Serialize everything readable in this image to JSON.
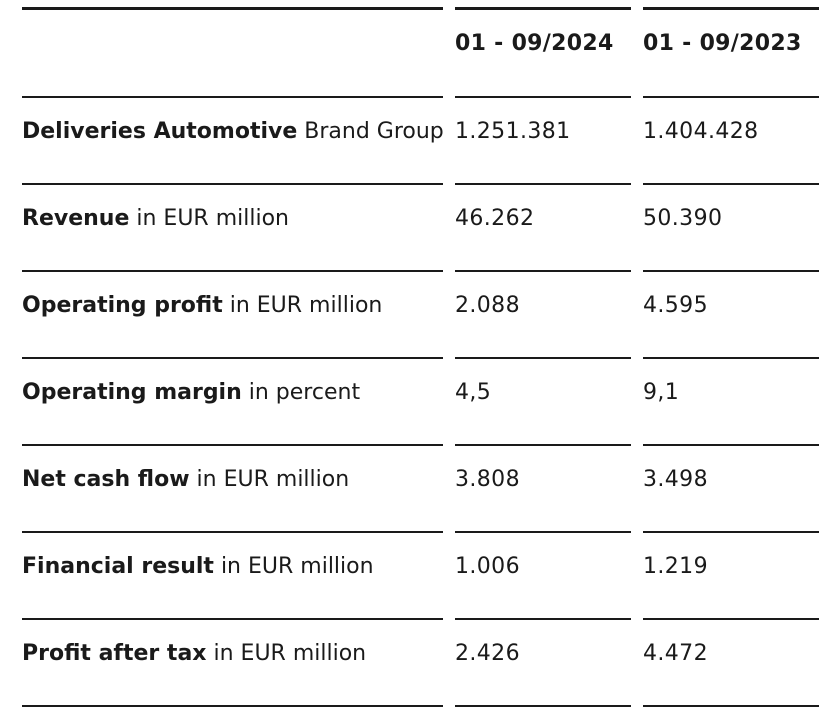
{
  "table": {
    "headers": [
      "",
      "01 - 09/2024",
      "01 - 09/2023"
    ],
    "rows": [
      {
        "label_strong": "Deliveries Automotive",
        "label_rest": " Brand Group",
        "values": [
          "1.251.381",
          "1.404.428"
        ]
      },
      {
        "label_strong": "Revenue",
        "label_rest": " in EUR million",
        "values": [
          "46.262",
          "50.390"
        ]
      },
      {
        "label_strong": "Operating profit",
        "label_rest": " in EUR million",
        "values": [
          "2.088",
          "4.595"
        ]
      },
      {
        "label_strong": "Operating margin",
        "label_rest": " in percent",
        "values": [
          "4,5",
          "9,1"
        ]
      },
      {
        "label_strong": "Net cash flow",
        "label_rest": " in EUR million",
        "values": [
          "3.808",
          "3.498"
        ]
      },
      {
        "label_strong": "Financial result",
        "label_rest": " in EUR million",
        "values": [
          "1.006",
          "1.219"
        ]
      },
      {
        "label_strong": "Profit after tax",
        "label_rest": " in EUR million",
        "values": [
          "2.426",
          "4.472"
        ]
      }
    ]
  }
}
